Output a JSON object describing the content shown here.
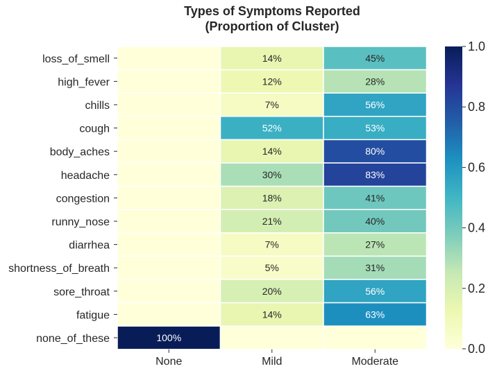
{
  "chart_data": {
    "type": "heatmap",
    "title": "Types of Symptoms Reported",
    "subtitle": "(Proportion of Cluster)",
    "columns": [
      "None",
      "Mild",
      "Moderate"
    ],
    "rows": [
      "loss_of_smell",
      "high_fever",
      "chills",
      "cough",
      "body_aches",
      "headache",
      "congestion",
      "runny_nose",
      "diarrhea",
      "shortness_of_breath",
      "sore_throat",
      "fatigue",
      "none_of_these"
    ],
    "values": [
      [
        0,
        0.14,
        0.45
      ],
      [
        0,
        0.12,
        0.28
      ],
      [
        0,
        0.07,
        0.56
      ],
      [
        0,
        0.52,
        0.53
      ],
      [
        0,
        0.14,
        0.8
      ],
      [
        0,
        0.3,
        0.83
      ],
      [
        0,
        0.18,
        0.41
      ],
      [
        0,
        0.21,
        0.4
      ],
      [
        0,
        0.07,
        0.27
      ],
      [
        0,
        0.05,
        0.31
      ],
      [
        0,
        0.2,
        0.56
      ],
      [
        0,
        0.14,
        0.63
      ],
      [
        1.0,
        0,
        0
      ]
    ],
    "annotations": [
      [
        "",
        "14%",
        "45%"
      ],
      [
        "",
        "12%",
        "28%"
      ],
      [
        "",
        "7%",
        "56%"
      ],
      [
        "",
        "52%",
        "53%"
      ],
      [
        "",
        "14%",
        "80%"
      ],
      [
        "",
        "30%",
        "83%"
      ],
      [
        "",
        "18%",
        "41%"
      ],
      [
        "",
        "21%",
        "40%"
      ],
      [
        "",
        "7%",
        "27%"
      ],
      [
        "",
        "5%",
        "31%"
      ],
      [
        "",
        "20%",
        "56%"
      ],
      [
        "",
        "14%",
        "63%"
      ],
      [
        "100%",
        "",
        ""
      ]
    ],
    "colorscale": "YlGnBu",
    "colorbar": {
      "range": [
        0,
        1
      ],
      "ticks": [
        "0.0",
        "0.2",
        "0.4",
        "0.6",
        "0.8",
        "1.0"
      ]
    }
  }
}
